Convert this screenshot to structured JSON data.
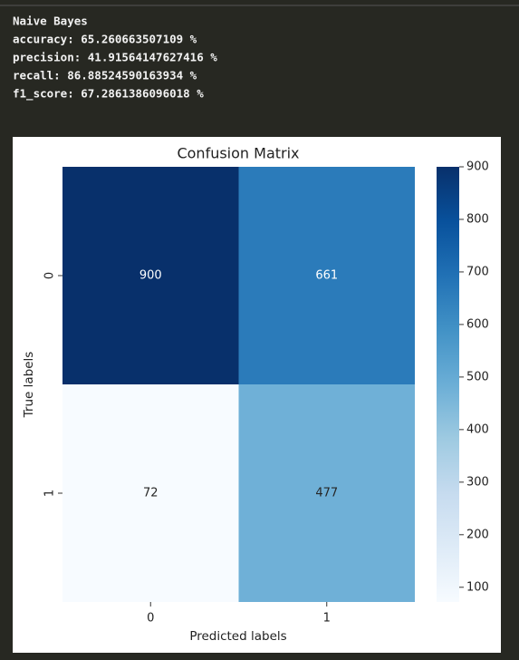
{
  "output": {
    "lines": [
      "Naive Bayes",
      "accuracy: 65.260663507109 %",
      "precision: 41.91564147627416 %",
      "recall: 86.88524590163934 %",
      "f1_score: 67.2861386096018 %"
    ]
  },
  "chart_data": {
    "type": "heatmap",
    "title": "Confusion Matrix",
    "xlabel": "Predicted labels",
    "ylabel": "True labels",
    "x_categories": [
      "0",
      "1"
    ],
    "y_categories": [
      "0",
      "1"
    ],
    "values": [
      [
        900,
        661
      ],
      [
        72,
        477
      ]
    ],
    "clim": [
      72,
      900
    ],
    "cticks": [
      100,
      200,
      300,
      400,
      500,
      600,
      700,
      800,
      900
    ],
    "colormap": [
      "#f7fbff",
      "#deebf7",
      "#c6dbef",
      "#9ecae1",
      "#6baed6",
      "#4292c6",
      "#2171b5",
      "#08519c",
      "#08306b"
    ]
  }
}
